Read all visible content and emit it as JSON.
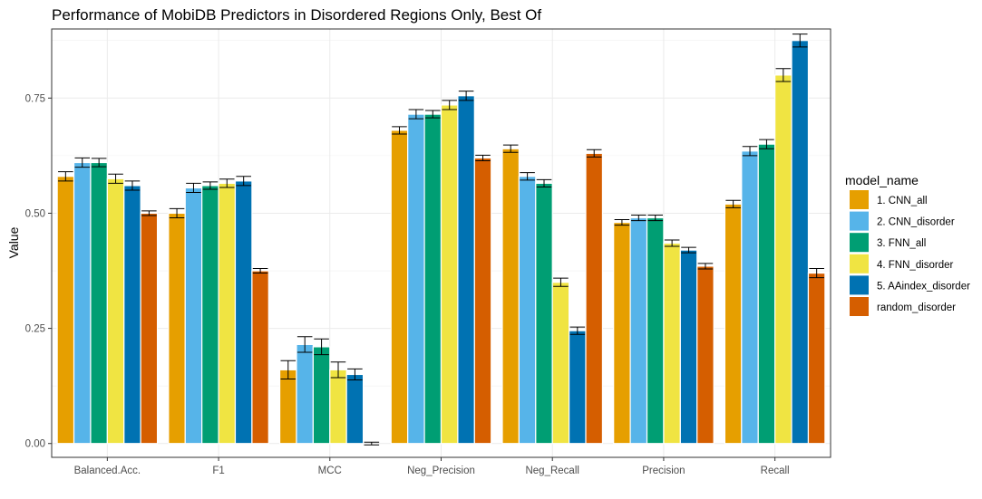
{
  "chart_data": {
    "type": "bar",
    "title": "Performance of MobiDB Predictors in Disordered Regions Only, Best Of",
    "xlabel": "",
    "ylabel": "Value",
    "ylim": [
      -0.03,
      0.9
    ],
    "yticks": [
      0.0,
      0.25,
      0.5,
      0.75
    ],
    "ytick_labels": [
      "0.00",
      "0.25",
      "0.50",
      "0.75"
    ],
    "grid": true,
    "legend_title": "model_name",
    "legend_position": "right",
    "categories": [
      "Balanced.Acc.",
      "F1",
      "MCC",
      "Neg_Precision",
      "Neg_Recall",
      "Precision",
      "Recall"
    ],
    "series": [
      {
        "name": "1. CNN_all",
        "color": "#E69F00",
        "values": [
          0.58,
          0.5,
          0.16,
          0.68,
          0.64,
          0.48,
          0.52
        ],
        "errors": [
          0.01,
          0.01,
          0.02,
          0.008,
          0.008,
          0.006,
          0.008
        ]
      },
      {
        "name": "2. CNN_disorder",
        "color": "#56B4E9",
        "values": [
          0.61,
          0.555,
          0.215,
          0.715,
          0.58,
          0.49,
          0.635
        ],
        "errors": [
          0.01,
          0.01,
          0.017,
          0.01,
          0.008,
          0.006,
          0.01
        ]
      },
      {
        "name": "3. FNN_all",
        "color": "#009E73",
        "values": [
          0.61,
          0.56,
          0.21,
          0.715,
          0.565,
          0.49,
          0.65
        ],
        "errors": [
          0.009,
          0.008,
          0.017,
          0.008,
          0.008,
          0.006,
          0.01
        ]
      },
      {
        "name": "4. FNN_disorder",
        "color": "#F0E442",
        "values": [
          0.575,
          0.565,
          0.16,
          0.735,
          0.35,
          0.435,
          0.8
        ],
        "errors": [
          0.01,
          0.009,
          0.017,
          0.01,
          0.009,
          0.007,
          0.014
        ]
      },
      {
        "name": "5. AAindex_disorder",
        "color": "#0072B2",
        "values": [
          0.56,
          0.57,
          0.15,
          0.755,
          0.245,
          0.42,
          0.875
        ],
        "errors": [
          0.01,
          0.01,
          0.012,
          0.01,
          0.008,
          0.006,
          0.014
        ]
      },
      {
        "name": "random_disorder",
        "color": "#D55E00",
        "values": [
          0.5,
          0.375,
          0.0,
          0.62,
          0.63,
          0.385,
          0.37
        ],
        "errors": [
          0.005,
          0.005,
          0.003,
          0.006,
          0.008,
          0.006,
          0.01
        ]
      }
    ]
  }
}
